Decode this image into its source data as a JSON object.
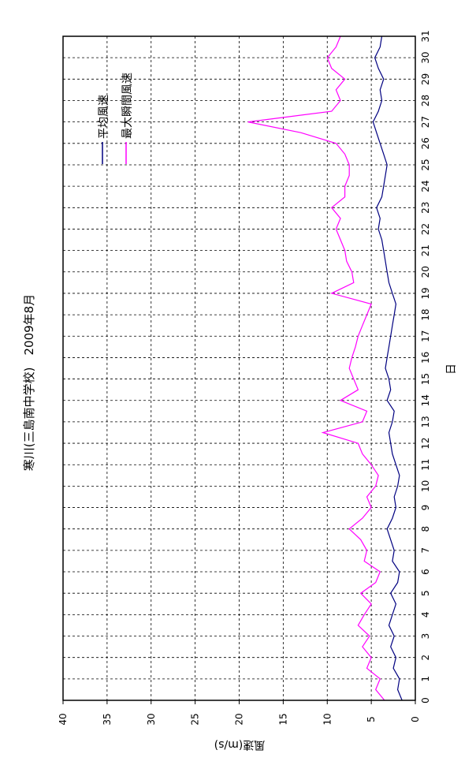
{
  "chart_data": {
    "type": "line",
    "title": "寒川(三島南中学校)　2009年8月",
    "xlabel": "日",
    "ylabel": "風速(m/s)",
    "xlim": [
      0,
      31
    ],
    "ylim": [
      0,
      40
    ],
    "xticks": [
      "0",
      "1",
      "2",
      "3",
      "4",
      "5",
      "6",
      "7",
      "8",
      "9",
      "10",
      "11",
      "12",
      "13",
      "14",
      "15",
      "16",
      "17",
      "18",
      "19",
      "20",
      "21",
      "22",
      "23",
      "24",
      "25",
      "26",
      "27",
      "28",
      "29",
      "30",
      "31"
    ],
    "yticks": [
      "0",
      "5",
      "10",
      "15",
      "20",
      "25",
      "30",
      "35",
      "40"
    ],
    "grid": true,
    "legend_position": "top-right",
    "series": [
      {
        "name": "平均風速",
        "color": "#000080",
        "x": [
          0,
          0.5,
          1,
          1.5,
          2,
          2.5,
          3,
          3.5,
          4,
          4.5,
          5,
          5.5,
          6,
          6.5,
          7,
          7.5,
          8,
          8.5,
          9,
          9.5,
          10,
          10.5,
          11,
          11.5,
          12,
          12.5,
          13,
          13.5,
          14,
          14.5,
          15,
          15.5,
          16,
          16.5,
          17,
          17.5,
          18,
          18.5,
          19,
          19.5,
          20,
          20.5,
          21,
          21.5,
          22,
          22.5,
          23,
          23.5,
          24,
          24.5,
          25,
          25.5,
          26,
          26.5,
          27,
          27.5,
          28,
          28.5,
          29,
          29.5,
          30,
          30.5,
          31
        ],
        "values": [
          1.5,
          2.0,
          1.8,
          2.5,
          2.2,
          2.8,
          2.4,
          3.0,
          2.6,
          2.2,
          2.8,
          2.0,
          1.8,
          2.6,
          2.4,
          2.8,
          3.2,
          2.6,
          2.2,
          2.4,
          2.0,
          1.8,
          2.2,
          2.6,
          2.8,
          3.0,
          2.6,
          2.4,
          3.2,
          2.8,
          3.0,
          3.4,
          3.2,
          3.0,
          2.8,
          2.6,
          2.4,
          2.2,
          2.6,
          3.0,
          3.2,
          3.4,
          3.6,
          3.8,
          4.2,
          4.0,
          4.4,
          3.8,
          3.6,
          3.4,
          3.2,
          3.6,
          4.0,
          4.4,
          4.8,
          4.2,
          3.8,
          4.0,
          3.6,
          4.2,
          4.6,
          4.0,
          3.8
        ]
      },
      {
        "name": "最大瞬間風速",
        "color": "#ff00ff",
        "x": [
          0,
          0.5,
          1,
          1.5,
          2,
          2.5,
          3,
          3.5,
          4,
          4.5,
          5,
          5.5,
          6,
          6.5,
          7,
          7.5,
          8,
          8.5,
          9,
          9.5,
          10,
          10.5,
          11,
          11.5,
          12,
          12.5,
          13,
          13.5,
          14,
          14.5,
          15,
          15.5,
          16,
          16.5,
          17,
          17.5,
          18,
          18.5,
          19,
          19.5,
          20,
          20.5,
          21,
          21.5,
          22,
          22.5,
          23,
          23.5,
          24,
          24.5,
          25,
          25.5,
          26,
          26.5,
          27,
          27.5,
          28,
          28.5,
          29,
          29.5,
          30,
          30.5,
          31
        ],
        "values": [
          3.5,
          4.5,
          4.0,
          5.5,
          5.0,
          6.0,
          5.2,
          6.5,
          5.8,
          5.0,
          6.2,
          4.5,
          4.0,
          5.8,
          5.5,
          6.2,
          7.5,
          6.0,
          5.0,
          5.5,
          4.5,
          4.2,
          5.0,
          6.0,
          6.5,
          10.5,
          6.0,
          5.5,
          8.5,
          6.5,
          7.0,
          7.5,
          7.2,
          6.8,
          6.5,
          6.0,
          5.5,
          5.0,
          9.5,
          7.0,
          7.2,
          7.8,
          8.0,
          8.5,
          9.0,
          8.5,
          9.5,
          8.0,
          8.0,
          7.5,
          7.5,
          8.0,
          9.0,
          13.0,
          19.0,
          9.5,
          8.5,
          9.0,
          8.0,
          9.5,
          10.0,
          9.0,
          8.5
        ]
      }
    ]
  }
}
